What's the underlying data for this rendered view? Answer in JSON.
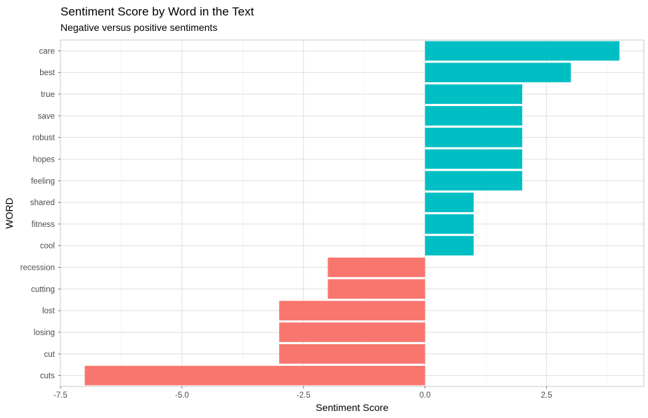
{
  "chart_data": {
    "type": "bar",
    "orientation": "horizontal",
    "title": "Sentiment Score by Word in the Text",
    "subtitle": "Negative versus positive sentiments",
    "xlabel": "Sentiment Score",
    "ylabel": "WORD",
    "xlim": [
      -7.5,
      4.5
    ],
    "x_ticks": [
      "-7.5",
      "-5.0",
      "-2.5",
      "0.0",
      "2.5"
    ],
    "x_tick_values": [
      -7.5,
      -5.0,
      -2.5,
      0.0,
      2.5
    ],
    "categories": [
      "care",
      "best",
      "true",
      "save",
      "robust",
      "hopes",
      "feeling",
      "shared",
      "fitness",
      "cool",
      "recession",
      "cutting",
      "lost",
      "losing",
      "cut",
      "cuts"
    ],
    "values": [
      4,
      3,
      2,
      2,
      2,
      2,
      2,
      1,
      1,
      1,
      -2,
      -2,
      -3,
      -3,
      -3,
      -7
    ],
    "grid": true,
    "legend": "none",
    "colors": {
      "positive": "#00bfc4",
      "negative": "#f8766d"
    }
  }
}
